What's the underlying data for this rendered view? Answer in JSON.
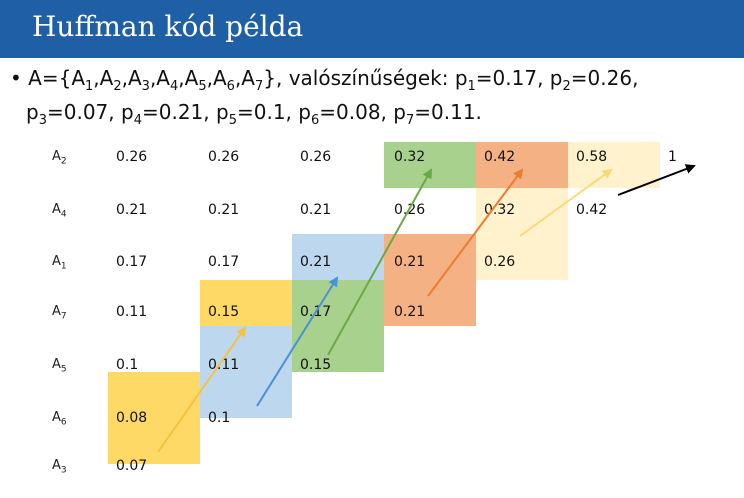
{
  "title": "Huffman kód példa",
  "bullet": {
    "marker": "•",
    "line1_prefix": "A={A",
    "line1_sets": [
      {
        "sub": "1",
        "sep": ",A"
      },
      {
        "sub": "2",
        "sep": ",A"
      },
      {
        "sub": "3",
        "sep": ",A"
      },
      {
        "sub": "4",
        "sep": ",A"
      },
      {
        "sub": "5",
        "sep": ",A"
      },
      {
        "sub": "6",
        "sep": ",A"
      },
      {
        "sub": "7",
        "sep": "}, valószínűségek: p"
      }
    ],
    "line1_probs": [
      {
        "sub": "1",
        "text": "=0.17, p"
      },
      {
        "sub": "2",
        "text": "=0.26,"
      }
    ],
    "line2": [
      {
        "pre": "p",
        "sub": "3",
        "text": "=0.07, "
      },
      {
        "pre": "p",
        "sub": "4",
        "text": "=0.21, "
      },
      {
        "pre": "p",
        "sub": "5",
        "text": "=0.1, "
      },
      {
        "pre": "p",
        "sub": "6",
        "text": "=0.08, "
      },
      {
        "pre": "p",
        "sub": "7",
        "text": "=0.11."
      }
    ]
  },
  "colors": {
    "header": "#1f5fa6",
    "yellow": "#ffd966",
    "blue": "#bdd7ee",
    "green": "#a9d18e",
    "orange": "#f4b183",
    "cream": "#fff2cc",
    "yellow_arrow": "#f5c342",
    "blue_arrow": "#4a8fd8",
    "green_arrow": "#6aaa46",
    "orange_arrow": "#ee7b30",
    "cream_arrow": "#f7da78",
    "black_arrow": "#000000"
  },
  "rows": [
    {
      "letter": "A",
      "sub": "2"
    },
    {
      "letter": "A",
      "sub": "4"
    },
    {
      "letter": "A",
      "sub": "1"
    },
    {
      "letter": "A",
      "sub": "7"
    },
    {
      "letter": "A",
      "sub": "5"
    },
    {
      "letter": "A",
      "sub": "6"
    },
    {
      "letter": "A",
      "sub": "3"
    }
  ],
  "columns": [
    [
      "0.26",
      "0.21",
      "0.17",
      "0.11",
      "0.1",
      "0.08",
      "0.07"
    ],
    [
      "0.26",
      "0.21",
      "0.17",
      "0.15",
      "0.11",
      "0.1"
    ],
    [
      "0.26",
      "0.21",
      "0.21",
      "0.17",
      "0.15"
    ],
    [
      "0.32",
      "0.26",
      "0.21",
      "0.21"
    ],
    [
      "0.42",
      "0.32",
      "0.26"
    ],
    [
      "0.58",
      "0.42"
    ],
    [
      "1"
    ]
  ]
}
